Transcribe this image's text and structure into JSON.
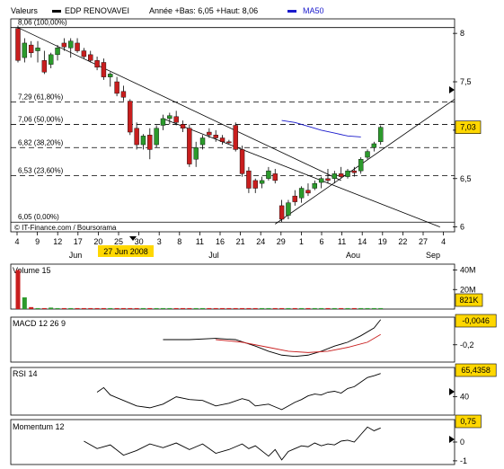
{
  "header": {
    "valeurs_label": "Valeurs",
    "instrument": "EDP RENOVAVEI",
    "range_text": "Année +Bas: 6,05 +Haut: 8,06",
    "ma_label": "MA50",
    "colors": {
      "up": "#2c9a2c",
      "down": "#c81e1e",
      "ma": "#1a1acc",
      "accent_box": "#ffd700"
    }
  },
  "chart_data": [
    {
      "type": "candlestick",
      "title": "EDP RENOVAVEI",
      "ylim": [
        5.95,
        8.15
      ],
      "y_ticks": [
        {
          "value": 8,
          "label": "8"
        },
        {
          "value": 7.5,
          "label": "7,5"
        },
        {
          "value": 7,
          "label": "7"
        },
        {
          "value": 6.5,
          "label": "6,5"
        },
        {
          "value": 6,
          "label": "6"
        }
      ],
      "last_value_label": "7,03",
      "fib_levels": [
        {
          "value": 8.06,
          "label": "8,06 (100,00%)"
        },
        {
          "value": 7.29,
          "label": "7,29 (61,80%)"
        },
        {
          "value": 7.06,
          "label": "7,06 (50,00%)"
        },
        {
          "value": 6.82,
          "label": "6,82 (38,20%)"
        },
        {
          "value": 6.53,
          "label": "6,53 (23,60%)"
        },
        {
          "value": 6.05,
          "label": "6,05 (0,00%)"
        }
      ],
      "x_ticks": [
        "4",
        "9",
        "12",
        "17",
        "20",
        "25",
        "30",
        "3",
        "8",
        "11",
        "16",
        "21",
        "24",
        "29",
        "1",
        "6",
        "11",
        "14",
        "19",
        "22",
        "27",
        "4"
      ],
      "months": [
        "Jun",
        "Jul",
        "Aou",
        "Sep"
      ],
      "highlight_label": "27 Jun 2008",
      "source_label": "© IT-Finance.com / Boursorama",
      "candles": [
        [
          8.05,
          8.08,
          7.7,
          7.72
        ],
        [
          7.75,
          7.95,
          7.7,
          7.9
        ],
        [
          7.88,
          7.92,
          7.75,
          7.8
        ],
        [
          7.82,
          7.92,
          7.7,
          7.85
        ],
        [
          7.72,
          7.82,
          7.58,
          7.6
        ],
        [
          7.68,
          7.8,
          7.64,
          7.78
        ],
        [
          7.78,
          7.88,
          7.72,
          7.85
        ],
        [
          7.9,
          7.95,
          7.82,
          7.86
        ],
        [
          7.85,
          7.95,
          7.75,
          7.92
        ],
        [
          7.9,
          7.95,
          7.8,
          7.82
        ],
        [
          7.82,
          7.85,
          7.74,
          7.76
        ],
        [
          7.78,
          7.82,
          7.7,
          7.72
        ],
        [
          7.72,
          7.76,
          7.62,
          7.65
        ],
        [
          7.7,
          7.74,
          7.52,
          7.55
        ],
        [
          7.55,
          7.6,
          7.45,
          7.58
        ],
        [
          7.5,
          7.55,
          7.35,
          7.38
        ],
        [
          7.4,
          7.46,
          7.3,
          7.34
        ],
        [
          7.3,
          7.32,
          6.95,
          6.98
        ],
        [
          7.02,
          7.08,
          6.8,
          6.85
        ],
        [
          6.85,
          6.96,
          6.8,
          6.94
        ],
        [
          6.95,
          7.02,
          6.7,
          6.8
        ],
        [
          6.85,
          7.05,
          6.82,
          7.02
        ],
        [
          7.05,
          7.16,
          7.0,
          7.12
        ],
        [
          7.12,
          7.18,
          7.06,
          7.15
        ],
        [
          7.14,
          7.2,
          7.05,
          7.08
        ],
        [
          7.06,
          7.1,
          6.98,
          7.02
        ],
        [
          7.02,
          7.06,
          6.62,
          6.65
        ],
        [
          6.7,
          6.88,
          6.62,
          6.82
        ],
        [
          6.85,
          6.95,
          6.8,
          6.92
        ],
        [
          6.98,
          7.02,
          6.92,
          6.95
        ],
        [
          6.95,
          7.0,
          6.88,
          6.92
        ],
        [
          6.92,
          6.95,
          6.85,
          6.88
        ],
        [
          6.88,
          6.9,
          6.86,
          6.87
        ],
        [
          7.05,
          7.08,
          6.78,
          6.8
        ],
        [
          6.8,
          6.84,
          6.52,
          6.55
        ],
        [
          6.58,
          6.62,
          6.35,
          6.4
        ],
        [
          6.48,
          6.5,
          6.35,
          6.4
        ],
        [
          6.45,
          6.52,
          6.4,
          6.48
        ],
        [
          6.5,
          6.62,
          6.48,
          6.58
        ],
        [
          6.55,
          6.6,
          6.45,
          6.48
        ],
        [
          6.22,
          6.28,
          6.05,
          6.08
        ],
        [
          6.12,
          6.28,
          6.08,
          6.25
        ],
        [
          6.32,
          6.38,
          6.22,
          6.26
        ],
        [
          6.3,
          6.42,
          6.25,
          6.4
        ],
        [
          6.38,
          6.45,
          6.32,
          6.35
        ],
        [
          6.4,
          6.48,
          6.38,
          6.45
        ],
        [
          6.46,
          6.52,
          6.4,
          6.5
        ],
        [
          6.5,
          6.6,
          6.45,
          6.48
        ],
        [
          6.5,
          6.58,
          6.45,
          6.55
        ],
        [
          6.55,
          6.62,
          6.5,
          6.52
        ],
        [
          6.52,
          6.6,
          6.5,
          6.58
        ],
        [
          6.58,
          6.62,
          6.52,
          6.56
        ],
        [
          6.58,
          6.72,
          6.55,
          6.7
        ],
        [
          6.72,
          6.8,
          6.7,
          6.78
        ],
        [
          6.82,
          6.88,
          6.78,
          6.86
        ],
        [
          6.88,
          7.05,
          6.85,
          7.03
        ]
      ],
      "ma50": [
        {
          "i": 40,
          "v": 7.1
        },
        {
          "i": 42,
          "v": 7.08
        },
        {
          "i": 44,
          "v": 7.04
        },
        {
          "i": 46,
          "v": 7.0
        },
        {
          "i": 48,
          "v": 6.97
        },
        {
          "i": 50,
          "v": 6.94
        },
        {
          "i": 52,
          "v": 6.93
        }
      ],
      "trendlines": [
        {
          "from": {
            "i": 0,
            "v": 8.06
          },
          "to": {
            "i": 49,
            "v": 6.48
          }
        },
        {
          "from": {
            "i": 22,
            "v": 7.12
          },
          "to": {
            "i": 64,
            "v": 6.0
          }
        },
        {
          "from": {
            "i": 39,
            "v": 6.03
          },
          "to": {
            "i": 72,
            "v": 7.32
          }
        }
      ]
    },
    {
      "type": "bar",
      "title": "Volume 15",
      "y_ticks": [
        {
          "value": 40,
          "label": "40M"
        },
        {
          "value": 20,
          "label": "20M"
        }
      ],
      "last_value_label": "821K",
      "ylim": [
        0,
        46
      ],
      "values": [
        40,
        12,
        2,
        1,
        1,
        1.5,
        1,
        1,
        1,
        1,
        1,
        1,
        1,
        1,
        1,
        1,
        1,
        1,
        1,
        1,
        1,
        1,
        1,
        1,
        1,
        1,
        1,
        1,
        1,
        1,
        1,
        1,
        1,
        1,
        1,
        1,
        1,
        1,
        1,
        1,
        1,
        1,
        1,
        1,
        1,
        1,
        1,
        1,
        1,
        1,
        1,
        1,
        1,
        1,
        1,
        1
      ]
    },
    {
      "type": "line",
      "title": "MACD 12 26 9",
      "y_ticks": [
        {
          "value": -0.2,
          "label": "-0,2"
        }
      ],
      "last_value_label": "-0,0046",
      "ylim": [
        -0.32,
        0.0
      ],
      "series": [
        {
          "values": [
            [
              22,
              -0.16
            ],
            [
              26,
              -0.16
            ],
            [
              30,
              -0.15
            ],
            [
              33,
              -0.16
            ],
            [
              36,
              -0.21
            ],
            [
              38,
              -0.25
            ],
            [
              40,
              -0.28
            ],
            [
              42,
              -0.29
            ],
            [
              44,
              -0.28
            ],
            [
              46,
              -0.25
            ],
            [
              48,
              -0.21
            ],
            [
              50,
              -0.18
            ],
            [
              52,
              -0.13
            ],
            [
              54,
              -0.07
            ],
            [
              55,
              -0.005
            ]
          ]
        },
        {
          "values": [
            [
              30,
              -0.16
            ],
            [
              34,
              -0.18
            ],
            [
              38,
              -0.22
            ],
            [
              41,
              -0.25
            ],
            [
              44,
              -0.26
            ],
            [
              47,
              -0.25
            ],
            [
              50,
              -0.22
            ],
            [
              53,
              -0.18
            ],
            [
              55,
              -0.12
            ]
          ]
        }
      ]
    },
    {
      "type": "line",
      "title": "RSI 14",
      "y_ticks": [
        {
          "value": 40,
          "label": "40"
        }
      ],
      "last_value_label": "65,4358",
      "ylim": [
        22,
        70
      ],
      "series": [
        {
          "values": [
            [
              12,
              45
            ],
            [
              13,
              50
            ],
            [
              14,
              42
            ],
            [
              16,
              36
            ],
            [
              18,
              30
            ],
            [
              20,
              28
            ],
            [
              22,
              32
            ],
            [
              24,
              40
            ],
            [
              26,
              37
            ],
            [
              28,
              36
            ],
            [
              30,
              30
            ],
            [
              32,
              33
            ],
            [
              34,
              38
            ],
            [
              35,
              36
            ],
            [
              36,
              30
            ],
            [
              37,
              31
            ],
            [
              38,
              32
            ],
            [
              39,
              29
            ],
            [
              40,
              26
            ],
            [
              41,
              30
            ],
            [
              42,
              34
            ],
            [
              43,
              37
            ],
            [
              44,
              41
            ],
            [
              45,
              43
            ],
            [
              46,
              42
            ],
            [
              47,
              45
            ],
            [
              48,
              46
            ],
            [
              49,
              44
            ],
            [
              50,
              49
            ],
            [
              51,
              51
            ],
            [
              52,
              56
            ],
            [
              53,
              61
            ],
            [
              54,
              63
            ],
            [
              55,
              65.4
            ]
          ]
        }
      ]
    },
    {
      "type": "line",
      "title": "Momentum 12",
      "y_ticks": [
        {
          "value": 0,
          "label": "0"
        },
        {
          "value": -1,
          "label": "-1"
        }
      ],
      "last_value_label": "0,75",
      "ylim": [
        -1.1,
        1.1
      ],
      "series": [
        {
          "values": [
            [
              10,
              0.05
            ],
            [
              12,
              -0.35
            ],
            [
              14,
              -0.15
            ],
            [
              16,
              -0.7
            ],
            [
              18,
              -0.45
            ],
            [
              20,
              -0.1
            ],
            [
              22,
              -0.3
            ],
            [
              24,
              -0.05
            ],
            [
              26,
              -0.4
            ],
            [
              28,
              -0.1
            ],
            [
              30,
              -0.6
            ],
            [
              32,
              -0.4
            ],
            [
              34,
              -0.1
            ],
            [
              35,
              -0.35
            ],
            [
              36,
              -0.2
            ],
            [
              38,
              -0.75
            ],
            [
              39,
              -0.4
            ],
            [
              40,
              -0.95
            ],
            [
              41,
              -0.5
            ],
            [
              42,
              -0.35
            ],
            [
              43,
              -0.2
            ],
            [
              44,
              -0.25
            ],
            [
              45,
              -0.05
            ],
            [
              46,
              -0.2
            ],
            [
              47,
              -0.1
            ],
            [
              48,
              -0.15
            ],
            [
              49,
              0.05
            ],
            [
              50,
              0.1
            ],
            [
              51,
              0.0
            ],
            [
              52,
              0.4
            ],
            [
              53,
              0.8
            ],
            [
              54,
              0.6
            ],
            [
              55,
              0.75
            ]
          ]
        }
      ]
    }
  ]
}
